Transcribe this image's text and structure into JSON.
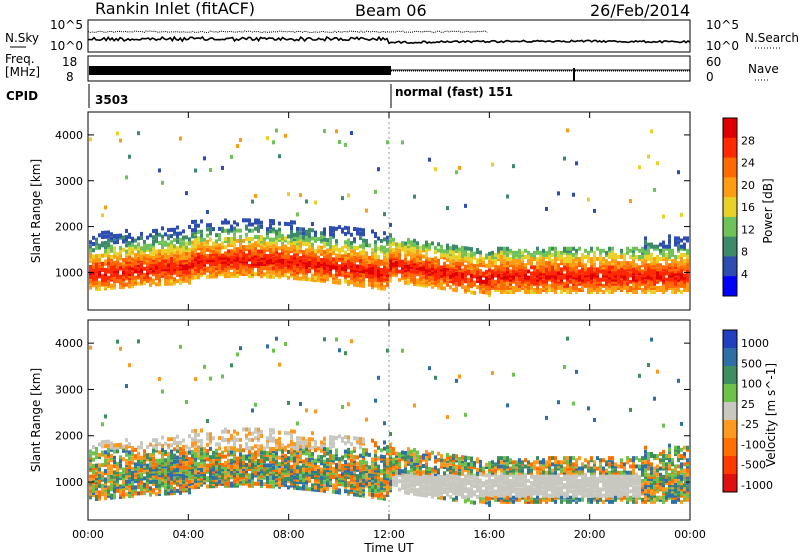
{
  "header": {
    "title": "Rankin Inlet (fitACF)",
    "beam": "Beam 06",
    "date": "26/Feb/2014"
  },
  "top_panel": {
    "left_label": "N.Sky",
    "right_label": "N.Search",
    "left_ticks": [
      "10^5",
      "10^0"
    ],
    "right_ticks": [
      "10^5",
      "10^0"
    ]
  },
  "freq_panel": {
    "left_label_1": "Freq.",
    "left_label_2": "[MHz]",
    "right_label": "Nave",
    "left_ticks": [
      "18",
      "8"
    ],
    "right_ticks": [
      "60",
      "0"
    ]
  },
  "cpid_panel": {
    "label": "CPID",
    "segments": [
      {
        "text": "3503",
        "start_hour": 0
      },
      {
        "text": "normal (fast) 151",
        "start_hour": 12
      }
    ]
  },
  "chart_data": [
    {
      "type": "heatmap",
      "panel": "power",
      "ylabel": "Slant Range [km]",
      "xlabel": "",
      "ylim": [
        180,
        4500
      ],
      "xlim_hours": [
        0,
        24
      ],
      "y_ticks": [
        1000,
        2000,
        3000,
        4000
      ],
      "colorbar": {
        "label": "Power [dB]",
        "ticks": [
          "4",
          "8",
          "12",
          "16",
          "20",
          "24",
          "28"
        ],
        "colors": [
          "#0000ff",
          "#2e4db0",
          "#3c8a6a",
          "#6fc25a",
          "#e8d22a",
          "#ff9d12",
          "#ff6a00",
          "#ff2a00",
          "#e00000"
        ]
      },
      "description_bands": [
        {
          "start_hour": 0,
          "end_hour": 12,
          "range_km": [
            600,
            1400
          ],
          "level_db": 24
        },
        {
          "start_hour": 12,
          "end_hour": 24,
          "range_km": [
            700,
            1100
          ],
          "level_db": 26
        }
      ]
    },
    {
      "type": "heatmap",
      "panel": "velocity",
      "ylabel": "Slant Range [km]",
      "xlabel": "Time UT",
      "ylim": [
        180,
        4500
      ],
      "xlim_hours": [
        0,
        24
      ],
      "y_ticks": [
        1000,
        2000,
        3000,
        4000
      ],
      "x_ticks": [
        "00:00",
        "04:00",
        "08:00",
        "12:00",
        "16:00",
        "20:00",
        "00:00"
      ],
      "colorbar": {
        "label": "Velocity [m s^-1]",
        "ticks": [
          "1000",
          "500",
          "100",
          "25",
          "-25",
          "-100",
          "-500",
          "-1000"
        ],
        "colors": [
          "#2040c0",
          "#2f6fa8",
          "#3f8f5e",
          "#6cc24a",
          "#c8c8c0",
          "#ff9a20",
          "#ff7000",
          "#ff3a00",
          "#e01010"
        ]
      }
    }
  ],
  "colors": {
    "power_high": "#ff2200",
    "power_mid": "#ff8c00",
    "ground_scatter": "#c8c8c0",
    "velocity_green": "#3f8f5e"
  }
}
